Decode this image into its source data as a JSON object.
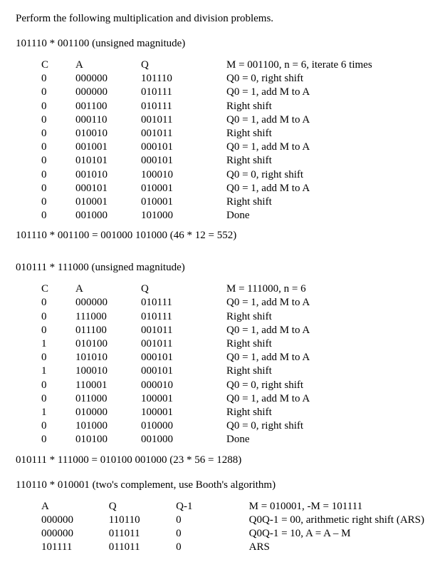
{
  "intro": "Perform the following multiplication and division problems.",
  "p1": {
    "title": "101110 * 001100 (unsigned magnitude)",
    "headers": {
      "c": "C",
      "a": "A",
      "q": "Q",
      "m": "M = 001100, n = 6, iterate 6 times"
    },
    "rows": [
      {
        "c": "0",
        "a": "000000",
        "q": "101110",
        "m": "Q0 = 0, right shift"
      },
      {
        "c": "0",
        "a": "000000",
        "q": "010111",
        "m": "Q0 = 1, add M to A"
      },
      {
        "c": "0",
        "a": "001100",
        "q": "010111",
        "m": "Right shift"
      },
      {
        "c": "0",
        "a": "000110",
        "q": "001011",
        "m": "Q0 = 1, add M to A"
      },
      {
        "c": "0",
        "a": "010010",
        "q": "001011",
        "m": "Right shift"
      },
      {
        "c": "0",
        "a": "001001",
        "q": "000101",
        "m": "Q0 = 1, add M to A"
      },
      {
        "c": "0",
        "a": "010101",
        "q": "000101",
        "m": "Right shift"
      },
      {
        "c": "0",
        "a": "001010",
        "q": "100010",
        "m": "Q0 = 0, right shift"
      },
      {
        "c": "0",
        "a": "000101",
        "q": "010001",
        "m": "Q0 = 1, add M to A"
      },
      {
        "c": "0",
        "a": "010001",
        "q": "010001",
        "m": "Right shift"
      },
      {
        "c": "0",
        "a": "001000",
        "q": "101000",
        "m": "Done"
      }
    ],
    "result": "101110 * 001100 = 001000 101000 (46 * 12 = 552)"
  },
  "p2": {
    "title": "010111 * 111000 (unsigned magnitude)",
    "headers": {
      "c": "C",
      "a": "A",
      "q": "Q",
      "m": "M = 111000, n = 6"
    },
    "rows": [
      {
        "c": "0",
        "a": "000000",
        "q": "010111",
        "m": "Q0 = 1, add M to A"
      },
      {
        "c": "0",
        "a": "111000",
        "q": "010111",
        "m": "Right shift"
      },
      {
        "c": "0",
        "a": "011100",
        "q": "001011",
        "m": "Q0 = 1, add M to A"
      },
      {
        "c": "1",
        "a": "010100",
        "q": "001011",
        "m": "Right shift"
      },
      {
        "c": "0",
        "a": "101010",
        "q": "000101",
        "m": "Q0 = 1, add M to A"
      },
      {
        "c": "1",
        "a": "100010",
        "q": "000101",
        "m": "Right shift"
      },
      {
        "c": "0",
        "a": "110001",
        "q": "000010",
        "m": "Q0 = 0, right shift"
      },
      {
        "c": "0",
        "a": "011000",
        "q": "100001",
        "m": "Q0 = 1, add M to A"
      },
      {
        "c": "1",
        "a": "010000",
        "q": "100001",
        "m": "Right shift"
      },
      {
        "c": "0",
        "a": "101000",
        "q": "010000",
        "m": "Q0 = 0, right shift"
      },
      {
        "c": "0",
        "a": "010100",
        "q": "001000",
        "m": "Done"
      }
    ],
    "result": "010111 * 111000 = 010100 001000 (23 * 56 = 1288)"
  },
  "p3": {
    "title": "110110 * 010001 (two's complement, use Booth's algorithm)",
    "headers": {
      "a": "A",
      "q": "Q",
      "q1": "Q-1",
      "m": "M = 010001, -M = 101111"
    },
    "rows": [
      {
        "a": "000000",
        "q": "110110",
        "q1": "0",
        "m": "Q0Q-1 = 00, arithmetic right shift (ARS)"
      },
      {
        "a": "000000",
        "q": "011011",
        "q1": "0",
        "m": "Q0Q-1 = 10, A = A – M"
      },
      {
        "a": "101111",
        "q": "011011",
        "q1": "0",
        "m": "ARS"
      }
    ]
  }
}
